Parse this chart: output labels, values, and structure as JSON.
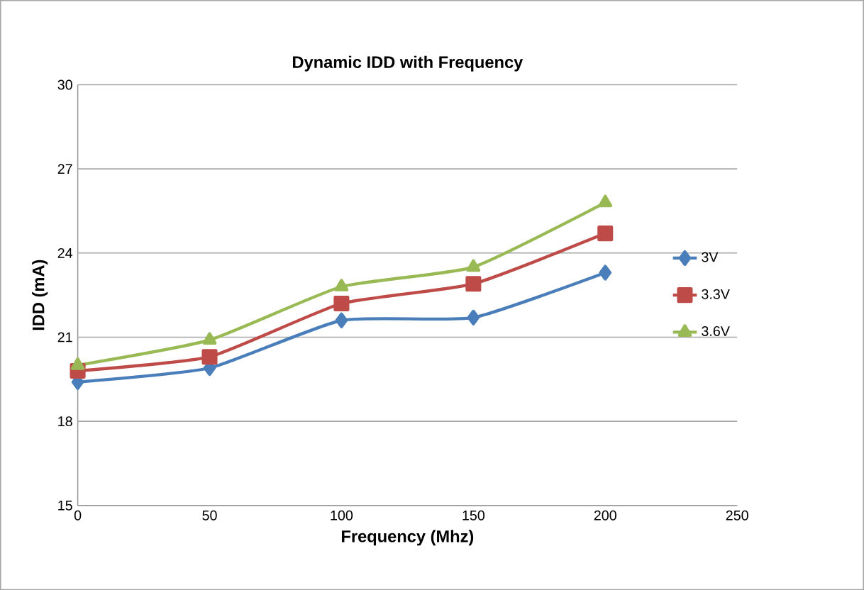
{
  "chart_data": {
    "type": "line",
    "title": "Dynamic IDD with Frequency",
    "xlabel": "Frequency (Mhz)",
    "ylabel": "IDD (mA)",
    "x": [
      0,
      50,
      100,
      150,
      200
    ],
    "series": [
      {
        "name": "3V",
        "color": "#4a7ebb",
        "marker": "diamond",
        "values": [
          19.4,
          19.9,
          21.6,
          21.7,
          23.3
        ]
      },
      {
        "name": "3.3V",
        "color": "#be4b48",
        "marker": "square",
        "values": [
          19.8,
          20.3,
          22.2,
          22.9,
          24.7
        ]
      },
      {
        "name": "3.6V",
        "color": "#98b954",
        "marker": "triangle",
        "values": [
          20.0,
          20.9,
          22.8,
          23.5,
          25.8
        ]
      }
    ],
    "xlim": [
      0,
      250
    ],
    "ylim": [
      15,
      30
    ],
    "xticks": [
      0,
      50,
      100,
      150,
      200,
      250
    ],
    "yticks": [
      15,
      18,
      21,
      24,
      27,
      30
    ],
    "grid": "y",
    "legend": "right",
    "line_style": "solid"
  }
}
